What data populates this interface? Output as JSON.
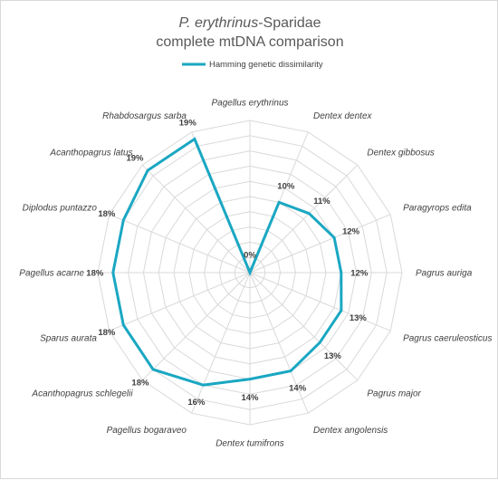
{
  "chart_data": {
    "type": "radar",
    "title_italic": "P. erythrinus",
    "title_rest": "-Sparidae",
    "title_line2": "complete mtDNA comparison",
    "legend_placement": "top",
    "series": [
      {
        "name": "Hamming genetic dissimilarity",
        "color": "#1aa7c2",
        "values": [
          0,
          10,
          11,
          12,
          12,
          13,
          13,
          14,
          14,
          16,
          18,
          18,
          18,
          18,
          19,
          19
        ],
        "value_labels": [
          "0%",
          "10%",
          "11%",
          "12%",
          "12%",
          "13%",
          "13%",
          "14%",
          "14%",
          "16%",
          "18%",
          "18%",
          "18%",
          "18%",
          "19%",
          "19%"
        ]
      }
    ],
    "categories": [
      "Pagellus erythrinus",
      "Dentex dentex",
      "Dentex gibbosus",
      "Paragyrops edita",
      "Pagrus auriga",
      "Pagrus caeruleosticus",
      "Pagrus major",
      "Dentex angolensis",
      "Dentex tumifrons",
      "Pagellus bogaraveo",
      "Acanthopagrus schlegelii",
      "Sparus aurata",
      "Pagellus acarne",
      "Diplodus puntazzo",
      "Acanthopagrus latus",
      "Rhabdosargus sarba"
    ],
    "rmax": 20,
    "ring_step": 2,
    "grid": true,
    "axis_labels_shown": false
  }
}
